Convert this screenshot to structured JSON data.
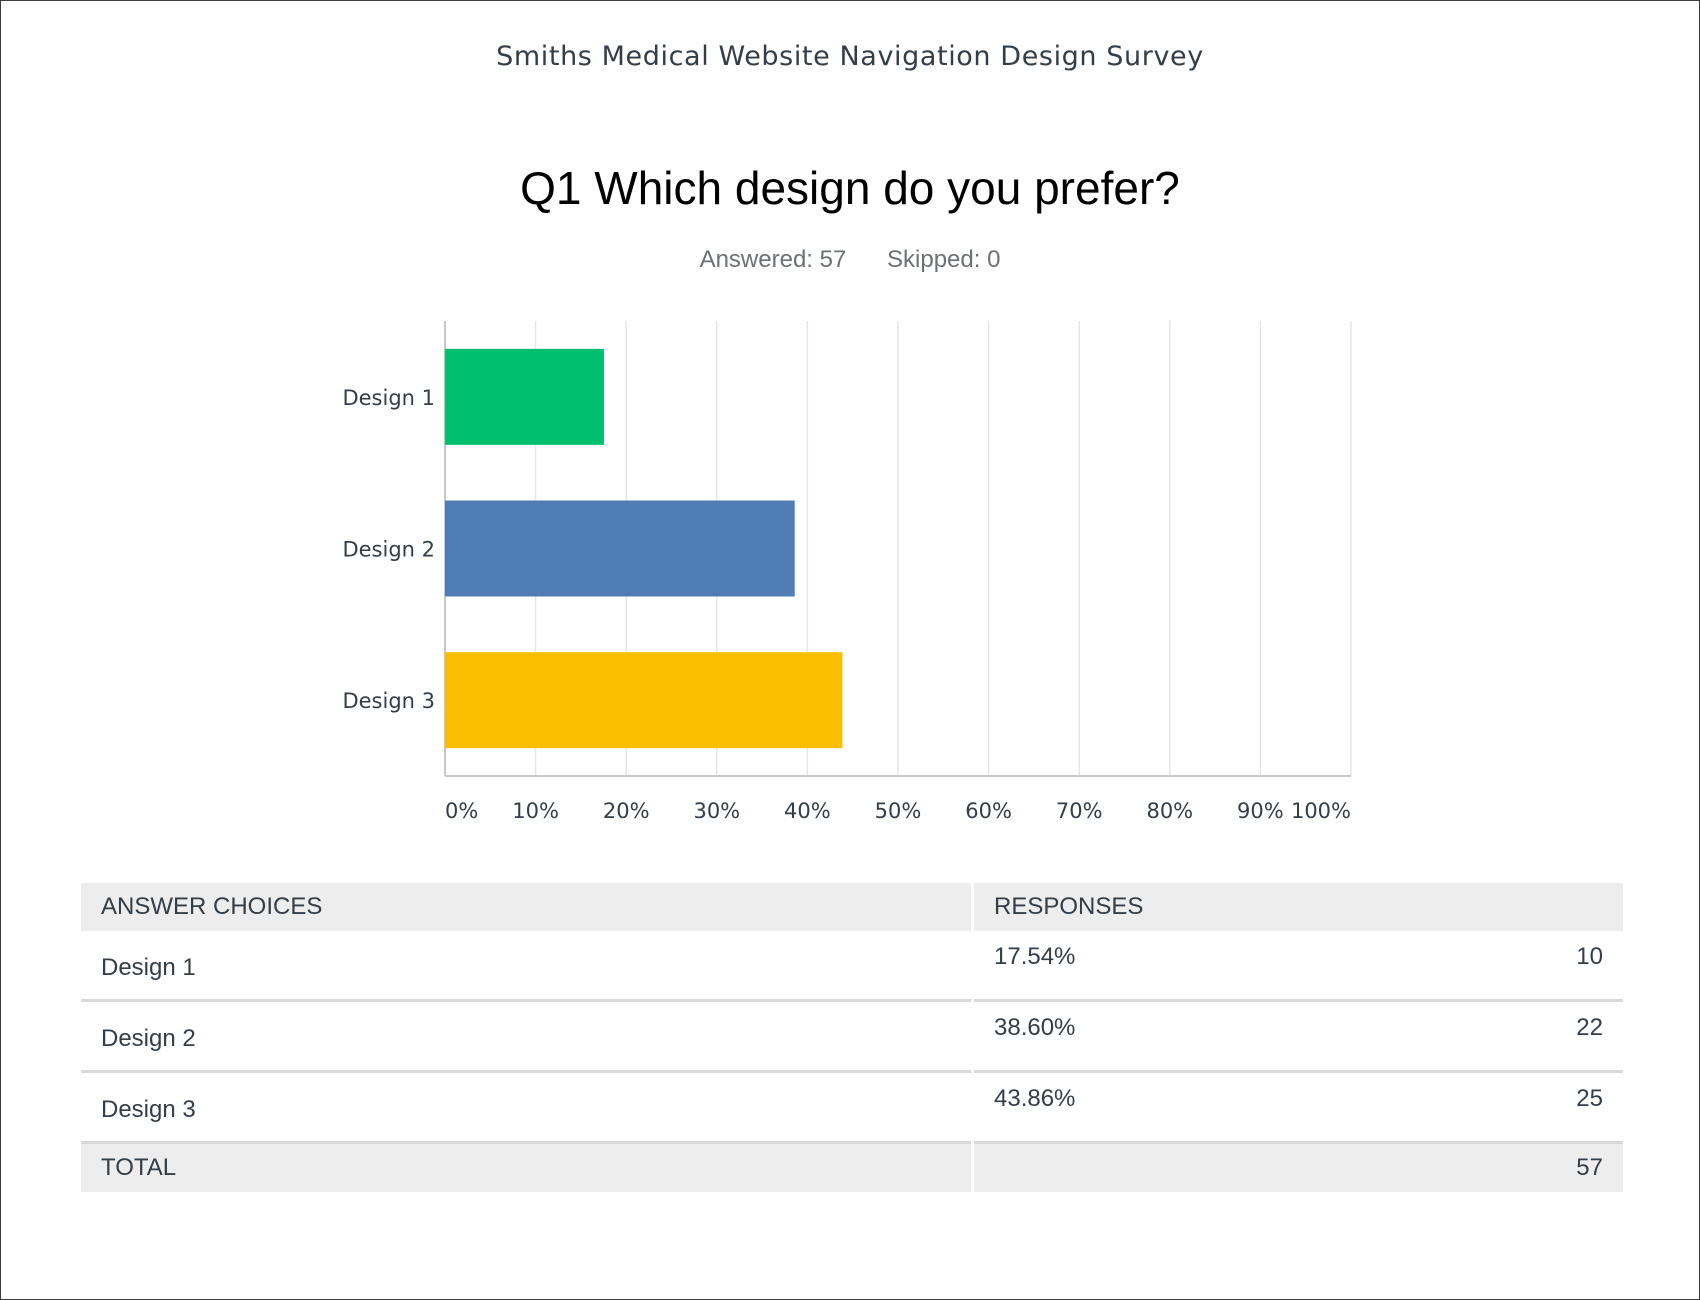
{
  "survey_title": "Smiths Medical Website Navigation Design Survey",
  "question": {
    "title": "Q1 Which design do you prefer?",
    "answered_label": "Answered: 57",
    "skipped_label": "Skipped: 0"
  },
  "chart_data": {
    "type": "bar",
    "orientation": "horizontal",
    "categories": [
      "Design 1",
      "Design 2",
      "Design 3"
    ],
    "values": [
      17.54,
      38.6,
      43.86
    ],
    "colors": [
      "#00bf6f",
      "#507cb6",
      "#f9be00"
    ],
    "xlim": [
      0,
      100
    ],
    "xticks": [
      0,
      10,
      20,
      30,
      40,
      50,
      60,
      70,
      80,
      90,
      100
    ],
    "xtick_labels": [
      "0%",
      "10%",
      "20%",
      "30%",
      "40%",
      "50%",
      "60%",
      "70%",
      "80%",
      "90%",
      "100%"
    ],
    "grid": true
  },
  "table": {
    "headers": [
      "ANSWER CHOICES",
      "RESPONSES"
    ],
    "rows": [
      {
        "choice": "Design 1",
        "percent": "17.54%",
        "count": "10"
      },
      {
        "choice": "Design 2",
        "percent": "38.60%",
        "count": "22"
      },
      {
        "choice": "Design 3",
        "percent": "43.86%",
        "count": "25"
      }
    ],
    "total_label": "TOTAL",
    "total_count": "57"
  }
}
